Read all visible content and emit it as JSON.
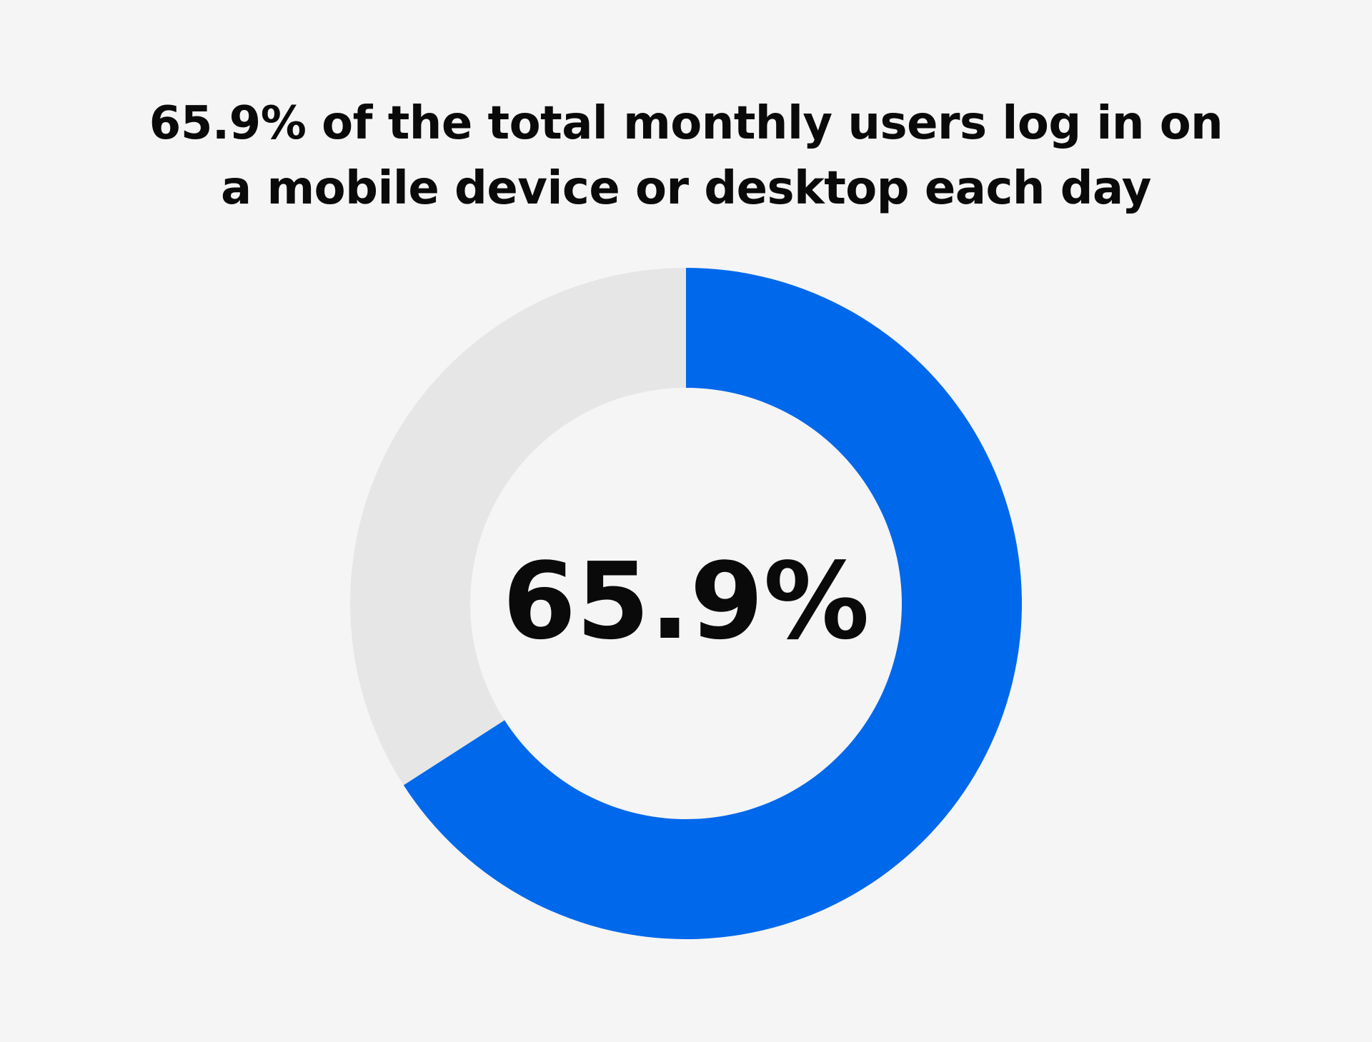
{
  "chart_data": {
    "type": "pie",
    "title_lines": [
      "65.9% of the total monthly users log in on",
      "a mobile device or desktop each day"
    ],
    "center_label": "65.9%",
    "slices": [
      {
        "value": 65.9,
        "color": "#0068ea"
      },
      {
        "value": 34.1,
        "color": "#e6e6e6"
      }
    ]
  }
}
